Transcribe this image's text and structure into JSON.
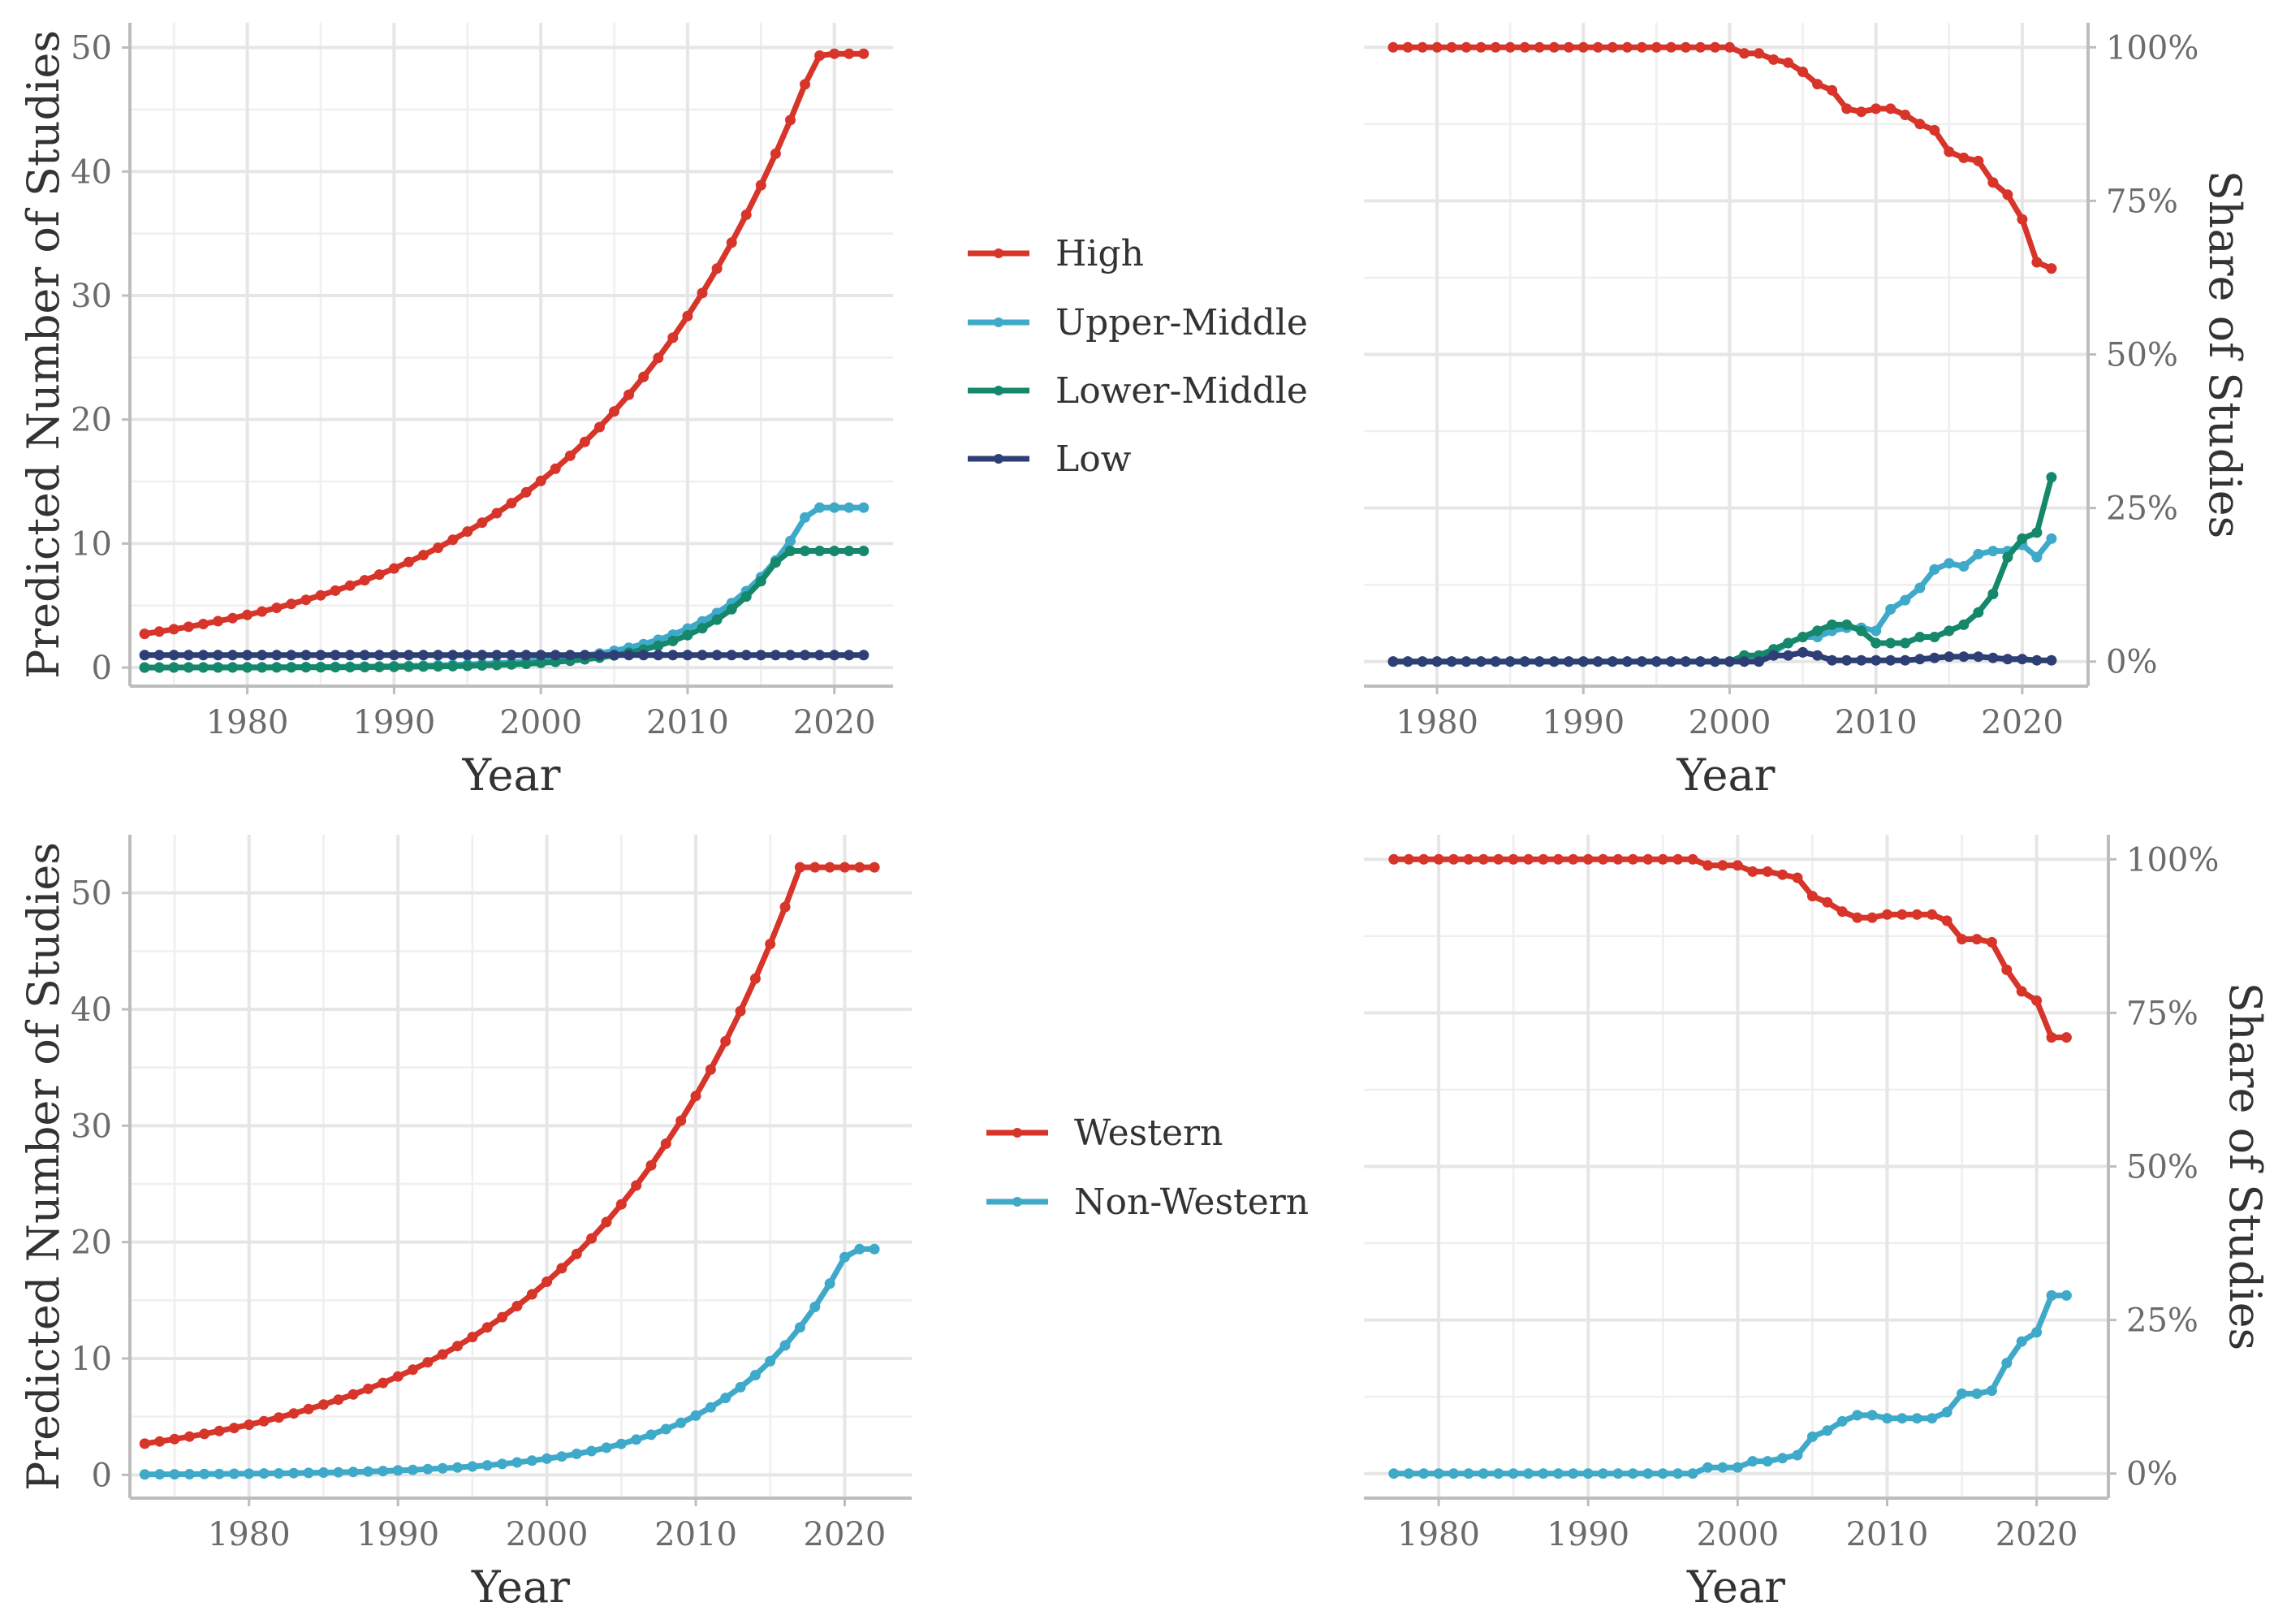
{
  "colors": {
    "high": "#d7342a",
    "upper_middle": "#3fa9c9",
    "lower_middle": "#15876b",
    "low": "#2e3f75"
  },
  "legends": {
    "income": [
      {
        "label": "High",
        "color": "#d7342a"
      },
      {
        "label": "Upper-Middle",
        "color": "#3fa9c9"
      },
      {
        "label": "Lower-Middle",
        "color": "#15876b"
      },
      {
        "label": "Low",
        "color": "#2e3f75"
      }
    ],
    "region": [
      {
        "label": "Western",
        "color": "#d7342a"
      },
      {
        "label": "Non-Western",
        "color": "#3fa9c9"
      }
    ]
  },
  "chart_data": [
    {
      "id": "income_counts",
      "type": "line",
      "xlabel": "Year",
      "ylabel": "Predicted Number of Studies",
      "xlim": [
        1972,
        2024
      ],
      "ylim": [
        -1.5,
        52
      ],
      "x_ticks": [
        1980,
        1990,
        2000,
        2010,
        2020
      ],
      "y_ticks": [
        0,
        10,
        20,
        30,
        40,
        50
      ],
      "y_tick_labels": [
        "0",
        "10",
        "20",
        "30",
        "40",
        "50"
      ],
      "y_axis_side": "left",
      "grid": true,
      "x_start": 1973,
      "x_end": 2022,
      "series": [
        {
          "name": "High",
          "color": "#d7342a",
          "values": [
            2.72,
            2.9,
            3.09,
            3.29,
            3.51,
            3.74,
            3.98,
            4.24,
            4.52,
            4.81,
            5.13,
            5.46,
            5.82,
            6.2,
            6.61,
            7.04,
            7.5,
            7.99,
            8.51,
            9.07,
            9.66,
            10.3,
            10.97,
            11.68,
            12.45,
            13.26,
            14.13,
            15.05,
            16.03,
            17.08,
            18.2,
            19.39,
            20.65,
            22.0,
            23.44,
            24.97,
            26.6,
            28.34,
            30.2,
            32.17,
            34.27,
            36.51,
            38.9,
            41.44,
            44.15,
            47.03,
            49.35,
            49.5,
            49.5,
            49.5
          ]
        },
        {
          "name": "Upper-Middle",
          "color": "#3fa9c9",
          "values": [
            0.006,
            0.007,
            0.009,
            0.01,
            0.012,
            0.014,
            0.017,
            0.02,
            0.024,
            0.028,
            0.033,
            0.039,
            0.047,
            0.055,
            0.065,
            0.077,
            0.092,
            0.11,
            0.13,
            0.15,
            0.18,
            0.21,
            0.25,
            0.3,
            0.35,
            0.41,
            0.49,
            0.58,
            0.69,
            0.81,
            0.96,
            1.14,
            1.35,
            1.6,
            1.89,
            2.24,
            2.65,
            3.14,
            3.72,
            4.4,
            5.2,
            6.16,
            7.29,
            8.63,
            10.2,
            12.1,
            12.9,
            12.9,
            12.9,
            12.9
          ]
        },
        {
          "name": "Lower-Middle",
          "color": "#15876b",
          "values": [
            0.002,
            0.002,
            0.003,
            0.003,
            0.004,
            0.005,
            0.006,
            0.007,
            0.009,
            0.011,
            0.013,
            0.016,
            0.02,
            0.024,
            0.029,
            0.035,
            0.043,
            0.052,
            0.064,
            0.077,
            0.094,
            0.11,
            0.14,
            0.17,
            0.2,
            0.25,
            0.3,
            0.37,
            0.45,
            0.54,
            0.66,
            0.8,
            0.98,
            1.19,
            1.45,
            1.76,
            2.14,
            2.61,
            3.17,
            3.86,
            4.7,
            5.72,
            6.96,
            8.47,
            9.4,
            9.4,
            9.4,
            9.4,
            9.4,
            9.4
          ]
        },
        {
          "name": "Low",
          "color": "#2e3f75",
          "values": [
            1,
            1,
            1,
            1,
            1,
            1,
            1,
            1,
            1,
            1,
            1,
            1,
            1,
            1,
            1,
            1,
            1,
            1,
            1,
            1,
            1,
            1,
            1,
            1,
            1,
            1,
            1,
            1,
            1,
            1,
            1,
            1,
            1,
            1,
            1,
            1,
            1,
            1,
            1,
            1,
            1,
            1,
            1,
            1,
            1,
            1,
            1,
            1,
            1,
            1
          ]
        }
      ]
    },
    {
      "id": "income_share",
      "type": "line",
      "xlabel": "Year",
      "ylabel": "Share of Studies",
      "xlim": [
        1975,
        2024.5
      ],
      "ylim": [
        -0.04,
        1.04
      ],
      "x_ticks": [
        1980,
        1990,
        2000,
        2010,
        2020
      ],
      "y_ticks": [
        0,
        0.25,
        0.5,
        0.75,
        1
      ],
      "y_tick_labels": [
        "0%",
        "25%",
        "50%",
        "75%",
        "100%"
      ],
      "y_axis_side": "right",
      "grid": true,
      "x_start": 1977,
      "x_end": 2022,
      "series": [
        {
          "name": "High",
          "color": "#d7342a",
          "values": [
            1,
            1,
            1,
            1,
            1,
            1,
            1,
            1,
            1,
            1,
            1,
            1,
            1,
            1,
            1,
            1,
            1,
            1,
            1,
            1,
            1,
            1,
            1,
            1,
            0.99,
            0.99,
            0.98,
            0.975,
            0.96,
            0.94,
            0.93,
            0.9,
            0.895,
            0.9,
            0.9,
            0.89,
            0.875,
            0.865,
            0.83,
            0.82,
            0.815,
            0.78,
            0.76,
            0.72,
            0.65,
            0.64
          ]
        },
        {
          "name": "Upper-Middle",
          "color": "#3fa9c9",
          "values": [
            0,
            0,
            0,
            0,
            0,
            0,
            0,
            0,
            0,
            0,
            0,
            0,
            0,
            0,
            0,
            0,
            0,
            0,
            0,
            0,
            0,
            0,
            0,
            0,
            0,
            0,
            0.015,
            0.03,
            0.04,
            0.04,
            0.05,
            0.055,
            0.055,
            0.05,
            0.085,
            0.1,
            0.12,
            0.15,
            0.16,
            0.155,
            0.175,
            0.18,
            0.18,
            0.19,
            0.17,
            0.2
          ]
        },
        {
          "name": "Lower-Middle",
          "color": "#15876b",
          "values": [
            0,
            0,
            0,
            0,
            0,
            0,
            0,
            0,
            0,
            0,
            0,
            0,
            0,
            0,
            0,
            0,
            0,
            0,
            0,
            0,
            0,
            0,
            0,
            0,
            0.01,
            0.01,
            0.02,
            0.03,
            0.04,
            0.05,
            0.06,
            0.06,
            0.05,
            0.03,
            0.03,
            0.03,
            0.04,
            0.04,
            0.05,
            0.06,
            0.08,
            0.11,
            0.17,
            0.2,
            0.21,
            0.3
          ]
        },
        {
          "name": "Low",
          "color": "#2e3f75",
          "values": [
            0,
            0,
            0,
            0,
            0,
            0,
            0,
            0,
            0,
            0,
            0,
            0,
            0,
            0,
            0,
            0,
            0,
            0,
            0,
            0,
            0,
            0,
            0,
            0,
            0,
            0,
            0.01,
            0.01,
            0.015,
            0.01,
            0.002,
            0.002,
            0.002,
            0.002,
            0.002,
            0.002,
            0.004,
            0.006,
            0.008,
            0.008,
            0.008,
            0.006,
            0.004,
            0.004,
            0.002,
            0.002
          ]
        }
      ]
    },
    {
      "id": "region_counts",
      "type": "line",
      "xlabel": "Year",
      "ylabel": "Predicted Number of Studies",
      "xlim": [
        1972,
        2024.5
      ],
      "ylim": [
        -2,
        55
      ],
      "x_ticks": [
        1980,
        1990,
        2000,
        2010,
        2020
      ],
      "y_ticks": [
        0,
        10,
        20,
        30,
        40,
        50
      ],
      "y_tick_labels": [
        "0",
        "10",
        "20",
        "30",
        "40",
        "50"
      ],
      "y_axis_side": "left",
      "grid": true,
      "x_start": 1973,
      "x_end": 2022,
      "series": [
        {
          "name": "Western",
          "color": "#d7342a",
          "values": [
            2.68,
            2.87,
            3.07,
            3.29,
            3.52,
            3.77,
            4.03,
            4.31,
            4.61,
            4.93,
            5.28,
            5.65,
            6.04,
            6.46,
            6.91,
            7.39,
            7.9,
            8.45,
            9.04,
            9.67,
            10.35,
            11.07,
            11.84,
            12.67,
            13.55,
            14.5,
            15.51,
            16.59,
            17.75,
            18.98,
            20.31,
            21.72,
            23.24,
            24.86,
            26.59,
            28.45,
            30.43,
            32.55,
            34.83,
            37.25,
            39.85,
            42.63,
            45.61,
            48.79,
            52.2,
            52.2,
            52.2,
            52.2,
            52.2,
            52.2
          ]
        },
        {
          "name": "Non-Western",
          "color": "#3fa9c9",
          "values": [
            0.04,
            0.05,
            0.05,
            0.06,
            0.07,
            0.08,
            0.09,
            0.1,
            0.12,
            0.13,
            0.15,
            0.17,
            0.2,
            0.22,
            0.25,
            0.29,
            0.33,
            0.38,
            0.43,
            0.49,
            0.56,
            0.63,
            0.72,
            0.82,
            0.94,
            1.07,
            1.22,
            1.39,
            1.58,
            1.8,
            2.05,
            2.33,
            2.66,
            3.03,
            3.45,
            3.93,
            4.47,
            5.09,
            5.8,
            6.61,
            7.53,
            8.57,
            9.76,
            11.12,
            12.67,
            14.43,
            16.43,
            18.71,
            19.4,
            19.4
          ]
        }
      ]
    },
    {
      "id": "region_share",
      "type": "line",
      "xlabel": "Year",
      "ylabel": "Share of Studies",
      "xlim": [
        1975,
        2024.8
      ],
      "ylim": [
        -0.04,
        1.04
      ],
      "x_ticks": [
        1980,
        1990,
        2000,
        2010,
        2020
      ],
      "y_ticks": [
        0,
        0.25,
        0.5,
        0.75,
        1
      ],
      "y_tick_labels": [
        "0%",
        "25%",
        "50%",
        "75%",
        "100%"
      ],
      "y_axis_side": "right",
      "grid": true,
      "x_start": 1977,
      "x_end": 2022,
      "series": [
        {
          "name": "Western",
          "color": "#d7342a",
          "values": [
            1,
            1,
            1,
            1,
            1,
            1,
            1,
            1,
            1,
            1,
            1,
            1,
            1,
            1,
            1,
            1,
            1,
            1,
            1,
            1,
            1,
            0.99,
            0.99,
            0.99,
            0.98,
            0.98,
            0.975,
            0.97,
            0.94,
            0.93,
            0.915,
            0.905,
            0.905,
            0.91,
            0.91,
            0.91,
            0.91,
            0.9,
            0.87,
            0.87,
            0.865,
            0.82,
            0.785,
            0.77,
            0.71,
            0.71
          ]
        },
        {
          "name": "Non-Western",
          "color": "#3fa9c9",
          "values": [
            0,
            0,
            0,
            0,
            0,
            0,
            0,
            0,
            0,
            0,
            0,
            0,
            0,
            0,
            0,
            0,
            0,
            0,
            0,
            0,
            0,
            0.01,
            0.01,
            0.01,
            0.02,
            0.02,
            0.025,
            0.03,
            0.06,
            0.07,
            0.085,
            0.095,
            0.095,
            0.09,
            0.09,
            0.09,
            0.09,
            0.1,
            0.13,
            0.13,
            0.135,
            0.18,
            0.215,
            0.23,
            0.29,
            0.29
          ]
        }
      ]
    }
  ]
}
